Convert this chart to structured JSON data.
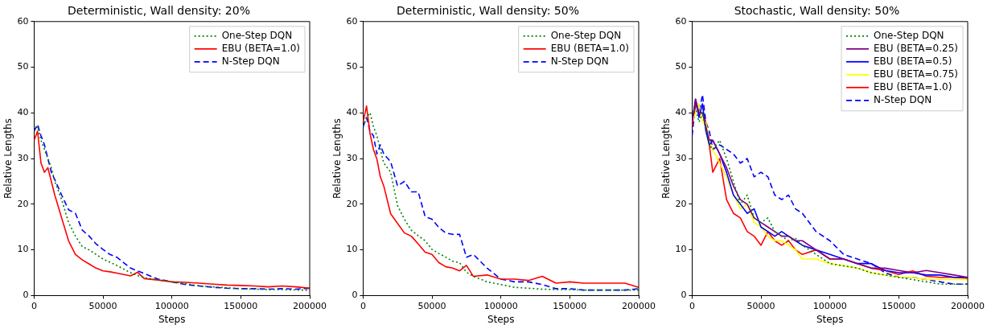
{
  "chart_data": [
    {
      "type": "line",
      "title": "Deterministic, Wall density: 20%",
      "xlabel": "Steps",
      "ylabel": "Relative Lengths",
      "x": [
        0,
        2500,
        5000,
        7500,
        10000,
        12500,
        15000,
        20000,
        25000,
        30000,
        35000,
        40000,
        45000,
        50000,
        55000,
        60000,
        65000,
        70000,
        75000,
        80000,
        90000,
        100000,
        110000,
        120000,
        130000,
        140000,
        150000,
        160000,
        170000,
        180000,
        190000,
        200000
      ],
      "xlim": [
        0,
        200000
      ],
      "xticks": [
        0,
        50000,
        100000,
        150000,
        200000
      ],
      "ylim": [
        0,
        60
      ],
      "yticks": [
        0,
        10,
        20,
        30,
        40,
        50,
        60
      ],
      "legend": "top right",
      "grid": false,
      "series": [
        {
          "name": "One-Step DQN",
          "color": "#008000",
          "line_style": "dotted",
          "values": [
            36,
            37,
            34,
            32,
            30,
            28,
            25,
            21,
            16,
            13,
            10.7,
            10,
            9,
            8,
            7.3,
            6.6,
            5.8,
            5,
            4.4,
            3.9,
            3.4,
            3,
            2.6,
            2.1,
            1.9,
            1.7,
            1.5,
            1.4,
            1.3,
            1.3,
            1.2,
            1.2
          ]
        },
        {
          "name": "EBU (BETA=1.0)",
          "color": "#ff0000",
          "line_style": "solid",
          "values": [
            34,
            36,
            29,
            27,
            28,
            25,
            22,
            17,
            12,
            9,
            7.8,
            6.9,
            6,
            5.4,
            5.2,
            4.9,
            4.6,
            4.3,
            5.1,
            3.7,
            3.4,
            3,
            2.9,
            2.7,
            2.5,
            2.3,
            2.2,
            2.1,
            1.9,
            2.1,
            1.9,
            1.6
          ]
        },
        {
          "name": "N-Step DQN",
          "color": "#0000ff",
          "line_style": "dashed",
          "values": [
            36,
            37.5,
            35,
            33,
            30,
            27,
            25.4,
            22,
            18.8,
            18,
            14.3,
            13,
            11.3,
            10.1,
            9,
            8.4,
            7.2,
            6,
            5.4,
            4.8,
            3.6,
            3,
            2.4,
            2.1,
            1.8,
            1.6,
            1.5,
            1.5,
            1.4,
            1.5,
            1.4,
            1.6
          ]
        }
      ]
    },
    {
      "type": "line",
      "title": "Deterministic, Wall density: 50%",
      "xlabel": "Steps",
      "ylabel": "Relative Lengths",
      "x": [
        0,
        2500,
        5000,
        7500,
        10000,
        12500,
        15000,
        20000,
        25000,
        30000,
        35000,
        40000,
        45000,
        50000,
        55000,
        60000,
        65000,
        70000,
        75000,
        80000,
        90000,
        100000,
        110000,
        120000,
        130000,
        140000,
        150000,
        160000,
        170000,
        180000,
        190000,
        200000
      ],
      "xlim": [
        0,
        200000
      ],
      "xticks": [
        0,
        50000,
        100000,
        150000,
        200000
      ],
      "ylim": [
        0,
        60
      ],
      "yticks": [
        0,
        10,
        20,
        30,
        40,
        50,
        60
      ],
      "legend": "top right",
      "grid": false,
      "series": [
        {
          "name": "One-Step DQN",
          "color": "#008000",
          "line_style": "dotted",
          "values": [
            37,
            39,
            40,
            37,
            35,
            32,
            29,
            27,
            19.7,
            16.7,
            14.3,
            13.1,
            12,
            10.1,
            9.2,
            8.4,
            7.5,
            7.2,
            5.1,
            4.2,
            3,
            2.4,
            1.8,
            1.6,
            1.4,
            1.3,
            1.3,
            1.2,
            1.2,
            1.2,
            1.2,
            1.2
          ]
        },
        {
          "name": "EBU (BETA=1.0)",
          "color": "#ff0000",
          "line_style": "solid",
          "values": [
            38,
            41.5,
            35.5,
            32,
            29.9,
            26,
            24,
            17.9,
            15.8,
            13.7,
            13,
            11.3,
            9.5,
            9,
            7.2,
            6.3,
            6,
            5.4,
            6.6,
            4.2,
            4.5,
            3.6,
            3.6,
            3.3,
            4.2,
            2.7,
            3,
            2.7,
            2.7,
            2.7,
            2.7,
            1.8
          ]
        },
        {
          "name": "N-Step DQN",
          "color": "#0000ff",
          "line_style": "dashed",
          "values": [
            37,
            39,
            36,
            35,
            31,
            33,
            31,
            29.3,
            24,
            25,
            22.7,
            22.7,
            17.3,
            16.7,
            14.9,
            13.7,
            13.4,
            13.4,
            8.4,
            9,
            6,
            3.6,
            3,
            3,
            2.4,
            1.5,
            1.5,
            1.2,
            1.2,
            1.2,
            1.2,
            1.5
          ]
        }
      ]
    },
    {
      "type": "line",
      "title": "Stochastic, Wall density: 50%",
      "xlabel": "Steps",
      "ylabel": "Relative Lengths",
      "x": [
        0,
        2500,
        5000,
        7500,
        10000,
        12500,
        15000,
        20000,
        25000,
        30000,
        35000,
        40000,
        45000,
        50000,
        55000,
        60000,
        65000,
        70000,
        75000,
        80000,
        90000,
        100000,
        110000,
        120000,
        130000,
        140000,
        150000,
        160000,
        170000,
        180000,
        190000,
        200000
      ],
      "xlim": [
        0,
        200000
      ],
      "xticks": [
        0,
        50000,
        100000,
        150000,
        200000
      ],
      "ylim": [
        0,
        60
      ],
      "yticks": [
        0,
        10,
        20,
        30,
        40,
        50,
        60
      ],
      "legend": "top right",
      "grid": false,
      "series": [
        {
          "name": "One-Step DQN",
          "color": "#008000",
          "line_style": "dotted",
          "values": [
            40,
            41,
            38,
            40,
            36,
            33,
            32,
            34,
            30,
            25,
            20,
            22,
            17,
            16,
            17,
            14,
            13,
            12,
            12.5,
            11,
            9,
            7,
            6.5,
            6,
            5,
            4.5,
            4,
            3.5,
            3,
            2.5,
            2.5,
            2.5
          ]
        },
        {
          "name": "EBU (BETA=0.25)",
          "color": "#800080",
          "line_style": "solid",
          "values": [
            38,
            43,
            40,
            40,
            37,
            34,
            34,
            31,
            28,
            24,
            21,
            20,
            17,
            16,
            15,
            14,
            13,
            13,
            12,
            12,
            10,
            8,
            8,
            7,
            6,
            6,
            5.5,
            5,
            5.5,
            5,
            4.5,
            4
          ]
        },
        {
          "name": "EBU (BETA=0.5)",
          "color": "#0000ff",
          "line_style": "solid",
          "values": [
            38,
            43,
            39,
            42,
            36,
            33,
            34,
            31,
            27,
            22,
            20,
            18,
            19,
            15,
            14,
            13,
            14,
            13,
            12,
            11,
            10,
            9,
            8,
            7,
            7,
            5.5,
            5,
            5,
            4.5,
            4.5,
            4,
            4
          ]
        },
        {
          "name": "EBU (BETA=0.75)",
          "color": "#ffff00",
          "line_style": "solid",
          "values": [
            38,
            40,
            42,
            38,
            38,
            34,
            32,
            29,
            26,
            22,
            19,
            20,
            16,
            15,
            13,
            12,
            12,
            11,
            10,
            8,
            8,
            7,
            6.5,
            6,
            5,
            4.5,
            4,
            4,
            3.5,
            3.5,
            3.5,
            3.5
          ]
        },
        {
          "name": "EBU (BETA=1.0)",
          "color": "#ff0000",
          "line_style": "solid",
          "values": [
            37,
            42,
            40,
            40,
            38,
            33,
            27,
            30,
            21,
            18,
            17,
            14,
            13,
            11,
            14,
            12,
            11,
            12,
            10,
            9,
            10,
            8,
            8,
            7,
            6,
            5.5,
            4.6,
            5.4,
            4.2,
            4,
            4,
            3.8
          ]
        },
        {
          "name": "N-Step DQN",
          "color": "#0000ff",
          "line_style": "dashed",
          "values": [
            35,
            42,
            40,
            44,
            38,
            36,
            32,
            33,
            32,
            31,
            29,
            30,
            26,
            27,
            26,
            22,
            21,
            22,
            19,
            18,
            14,
            12,
            9,
            8,
            7,
            5,
            4,
            4,
            3.5,
            3,
            2.5,
            2.5
          ]
        }
      ]
    }
  ]
}
